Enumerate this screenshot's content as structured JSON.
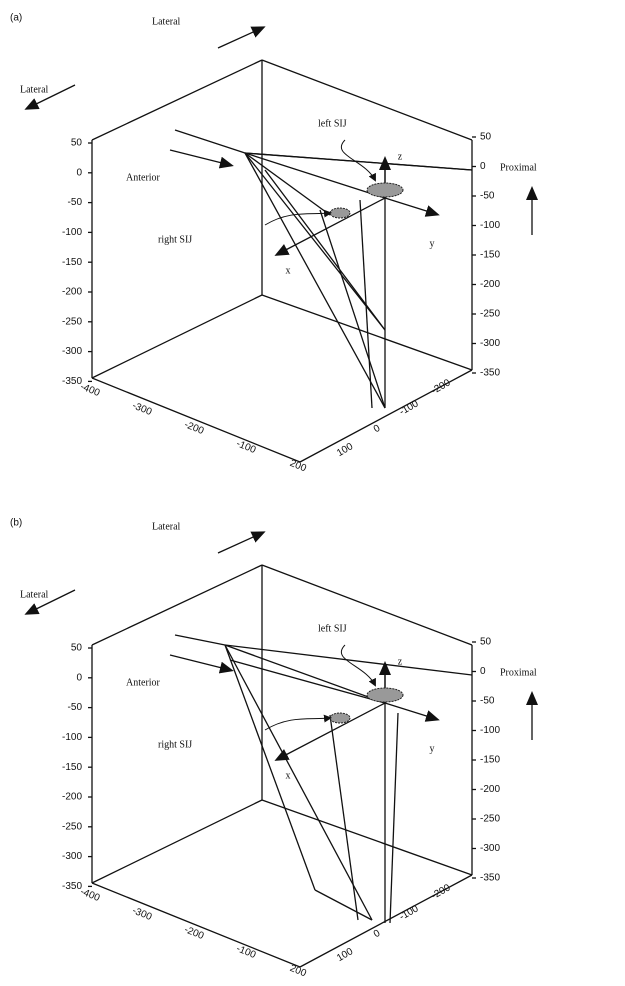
{
  "panels": [
    {
      "label": "(a)",
      "lateral_top": "Lateral",
      "lateral_left": "Lateral",
      "anterior": "Anterior",
      "proximal": "Proximal",
      "left_sij": "left SIJ",
      "right_sij": "right SIJ",
      "x_axis": "x",
      "y_axis": "y",
      "z_axis": "z",
      "left_ticks": [
        "50",
        "0",
        "-50",
        "-100",
        "-150",
        "-200",
        "-250",
        "-300",
        "-350"
      ],
      "right_ticks": [
        "50",
        "0",
        "-50",
        "-100",
        "-150",
        "-200",
        "-250",
        "-300",
        "-350"
      ],
      "front_ticks": [
        "-400",
        "-300",
        "-200",
        "-100",
        "200"
      ],
      "side_ticks": [
        "100",
        "0",
        "-100",
        "-200"
      ]
    },
    {
      "label": "(b)",
      "lateral_top": "Lateral",
      "lateral_left": "Lateral",
      "anterior": "Anterior",
      "proximal": "Proximal",
      "left_sij": "left SIJ",
      "right_sij": "right SIJ",
      "x_axis": "x",
      "y_axis": "y",
      "z_axis": "z",
      "left_ticks": [
        "50",
        "0",
        "-50",
        "-100",
        "-150",
        "-200",
        "-250",
        "-300",
        "-350"
      ],
      "right_ticks": [
        "50",
        "0",
        "-50",
        "-100",
        "-150",
        "-200",
        "-250",
        "-300",
        "-350"
      ],
      "front_ticks": [
        "-400",
        "-300",
        "-200",
        "-100",
        "200"
      ],
      "side_ticks": [
        "100",
        "0",
        "-100",
        "-200"
      ]
    }
  ]
}
